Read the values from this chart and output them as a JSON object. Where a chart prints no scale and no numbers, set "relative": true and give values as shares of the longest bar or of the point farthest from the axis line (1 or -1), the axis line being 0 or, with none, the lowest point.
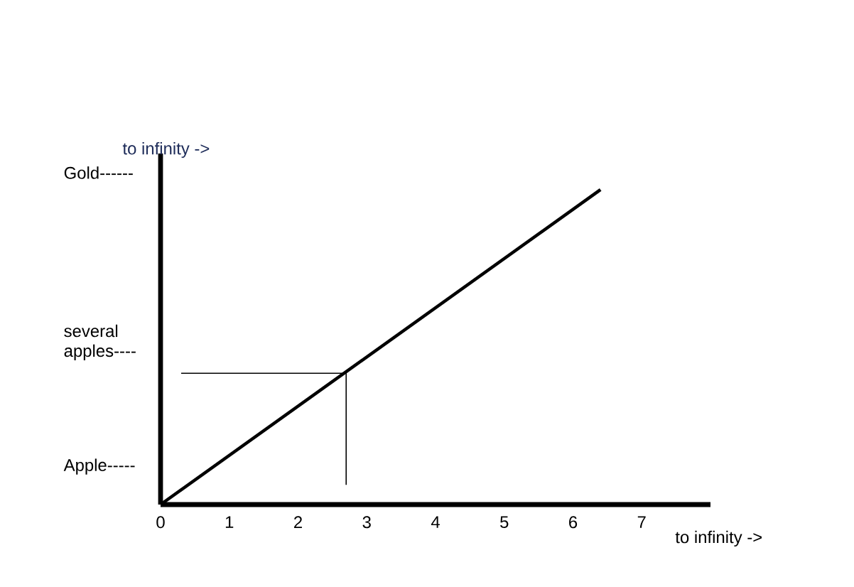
{
  "chart_data": {
    "type": "line",
    "xlabel": "to infinity ->",
    "ylabel": "to infinity ->",
    "relative": true,
    "xlim": [
      0,
      8
    ],
    "xticks": [
      0,
      1,
      2,
      3,
      4,
      5,
      6,
      7
    ],
    "annotations": [
      "Apple-----",
      "several apples----",
      "Gold------"
    ],
    "series": [
      {
        "color": "#000000",
        "x": [
          0,
          6.4
        ],
        "values": [
          0,
          1
        ]
      },
      {
        "color": "#000000",
        "x": [
          0.3,
          2.7,
          2.7
        ],
        "values": [
          0.417,
          0.417,
          0.0625
        ]
      }
    ]
  }
}
